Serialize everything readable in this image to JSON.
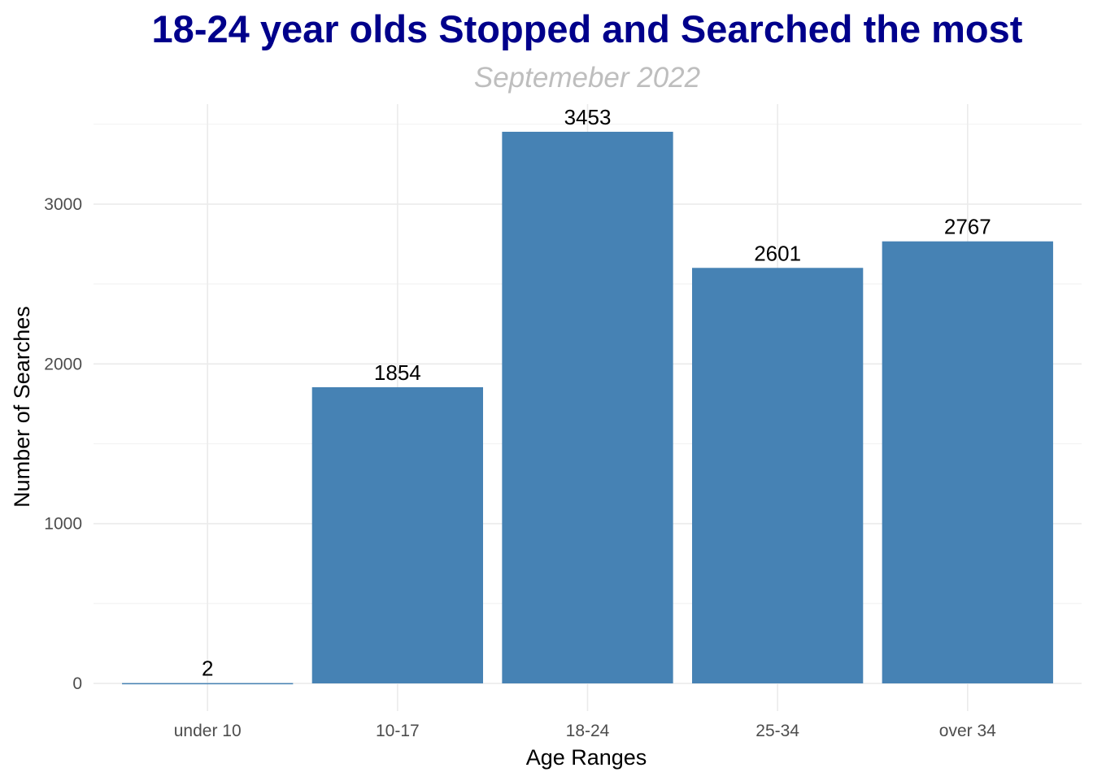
{
  "chart_data": {
    "type": "bar",
    "title": "18-24 year olds Stopped and Searched the most",
    "subtitle": "Septemeber 2022",
    "xlabel": "Age Ranges",
    "ylabel": "Number of Searches",
    "categories": [
      "under 10",
      "10-17",
      "18-24",
      "25-34",
      "over 34"
    ],
    "values": [
      2,
      1854,
      3453,
      2601,
      2767
    ],
    "data_labels": [
      "2",
      "1854",
      "3453",
      "2601",
      "2767"
    ],
    "yticks": [
      0,
      1000,
      2000,
      3000
    ],
    "ytick_labels": [
      "0",
      "1000",
      "2000",
      "3000"
    ],
    "ylim": [
      -173,
      3626
    ],
    "grid": true,
    "legend": "none",
    "colors": {
      "bar": "#4682b4",
      "title": "#00008b",
      "subtitle": "#bebebe",
      "grid": "#ebebeb"
    }
  }
}
